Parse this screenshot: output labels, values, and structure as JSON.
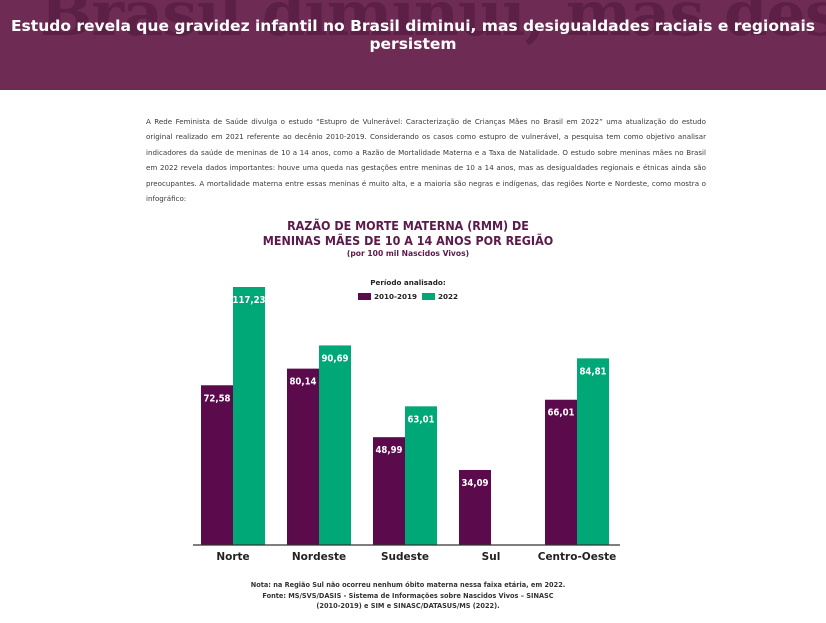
{
  "banner": {
    "title": "Estudo revela que gravidez infantil no Brasil diminui, mas desigualdades raciais e regionais persistem",
    "background_text": "Brasil diminui, mas desigualdades raciais e"
  },
  "article": {
    "body": "A Rede Feminista de Saúde divulga o estudo “Estupro de Vulnerável: Caracterização de Crianças Mães no Brasil em 2022” uma atualização do estudo original realizado em 2021 referente ao decênio 2010-2019. Considerando os casos como estupro de vulnerável, a pesquisa tem como objetivo analisar indicadores da saúde de meninas de 10 a 14 anos, como a Razão de Mortalidade Materna e a Taxa de Natalidade. O estudo sobre meninas mães no Brasil em 2022 revela dados importantes: houve uma queda nas gestações entre meninas de 10 a 14 anos, mas as desigualdades regionais e étnicas ainda são preocupantes. A mortalidade materna entre essas meninas é muito alta, e a maioria são negras e indígenas, das regiões Norte e Nordeste, como mostra o infográfico:"
  },
  "chart_data": {
    "type": "bar",
    "title_line1": "RAZÃO DE MORTE MATERNA (RMM) DE",
    "title_line2": "MENINAS MÃES DE 10 A 14 ANOS POR REGIÃO",
    "subtitle": "(por 100 mil Nascidos Vivos)",
    "legend_title": "Período analisado:",
    "legend_position": "top-center",
    "categories": [
      "Norte",
      "Nordeste",
      "Sudeste",
      "Sul",
      "Centro-Oeste"
    ],
    "series": [
      {
        "name": "2010-2019",
        "color": "#5b0a4c",
        "values": [
          72.58,
          80.14,
          48.99,
          34.09,
          66.01
        ],
        "labels": [
          "72,58",
          "80,14",
          "48,99",
          "34,09",
          "66,01"
        ]
      },
      {
        "name": "2022",
        "color": "#00a878",
        "values": [
          117.23,
          90.69,
          63.01,
          null,
          84.81
        ],
        "labels": [
          "117,23",
          "90,69",
          "63,01",
          "",
          "84,81"
        ]
      }
    ],
    "ylim": [
      0,
      120
    ],
    "grid": false,
    "note_line1": "Nota: na Região Sul não ocorreu nenhum óbito materna nessa faixa etária, em 2022.",
    "note_line2": "Fonte: MS/SVS/DASIS - Sistema de Informações sobre Nascidos Vivos – SINASC",
    "note_line3": "(2010-2019) e SIM e SINASC/DATASUS/MS (2022)."
  }
}
